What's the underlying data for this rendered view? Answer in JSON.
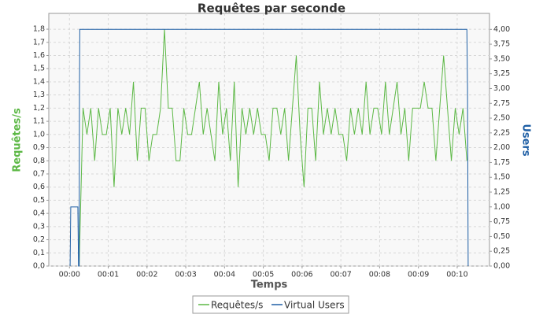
{
  "chart_data": {
    "type": "line",
    "title": "Requêtes par seconde",
    "x_label": "Temps",
    "y_label": "Requêtes/s",
    "y2_label": "Users",
    "xlim": [
      -32,
      650
    ],
    "xticks": [
      {
        "value": 0,
        "label": "00:00"
      },
      {
        "value": 60,
        "label": "00:01"
      },
      {
        "value": 120,
        "label": "00:02"
      },
      {
        "value": 180,
        "label": "00:03"
      },
      {
        "value": 240,
        "label": "00:04"
      },
      {
        "value": 300,
        "label": "00:05"
      },
      {
        "value": 360,
        "label": "00:06"
      },
      {
        "value": 420,
        "label": "00:07"
      },
      {
        "value": 480,
        "label": "00:08"
      },
      {
        "value": 540,
        "label": "00:09"
      },
      {
        "value": 600,
        "label": "00:10"
      }
    ],
    "ylim": [
      0,
      1.92
    ],
    "yticks": [
      {
        "value": 0,
        "label": "0,0"
      },
      {
        "value": 0.1,
        "label": "0,1"
      },
      {
        "value": 0.2,
        "label": "0,2"
      },
      {
        "value": 0.3,
        "label": "0,3"
      },
      {
        "value": 0.4,
        "label": "0,4"
      },
      {
        "value": 0.5,
        "label": "0,5"
      },
      {
        "value": 0.6,
        "label": "0,6"
      },
      {
        "value": 0.7,
        "label": "0,7"
      },
      {
        "value": 0.8,
        "label": "0,8"
      },
      {
        "value": 0.9,
        "label": "0,9"
      },
      {
        "value": 1.0,
        "label": "1,0"
      },
      {
        "value": 1.1,
        "label": "1,1"
      },
      {
        "value": 1.2,
        "label": "1,2"
      },
      {
        "value": 1.3,
        "label": "1,3"
      },
      {
        "value": 1.4,
        "label": "1,4"
      },
      {
        "value": 1.5,
        "label": "1,5"
      },
      {
        "value": 1.6,
        "label": "1,6"
      },
      {
        "value": 1.7,
        "label": "1,7"
      },
      {
        "value": 1.8,
        "label": "1,8"
      }
    ],
    "y2lim": [
      0,
      4.27
    ],
    "y2ticks": [
      {
        "value": 0,
        "label": "0,00"
      },
      {
        "value": 0.25,
        "label": "0,25"
      },
      {
        "value": 0.5,
        "label": "0,50"
      },
      {
        "value": 0.75,
        "label": "0,75"
      },
      {
        "value": 1,
        "label": "1,00"
      },
      {
        "value": 1.25,
        "label": "1,25"
      },
      {
        "value": 1.5,
        "label": "1,50"
      },
      {
        "value": 1.75,
        "label": "1,75"
      },
      {
        "value": 2,
        "label": "2,00"
      },
      {
        "value": 2.25,
        "label": "2,25"
      },
      {
        "value": 2.5,
        "label": "2,50"
      },
      {
        "value": 2.75,
        "label": "2,75"
      },
      {
        "value": 3,
        "label": "3,00"
      },
      {
        "value": 3.25,
        "label": "3,25"
      },
      {
        "value": 3.5,
        "label": "3,50"
      },
      {
        "value": 3.75,
        "label": "3,75"
      },
      {
        "value": 4,
        "label": "4,00"
      }
    ],
    "grid": true,
    "series": [
      {
        "name": "Requêtes/s",
        "color": "#5cb845",
        "x": [
          15,
          21,
          27,
          33,
          39,
          45,
          51,
          57,
          63,
          69,
          75,
          81,
          87,
          93,
          99,
          105,
          111,
          117,
          123,
          129,
          135,
          141,
          147,
          153,
          159,
          165,
          171,
          177,
          183,
          189,
          195,
          201,
          207,
          213,
          219,
          225,
          231,
          237,
          243,
          249,
          255,
          261,
          267,
          273,
          279,
          285,
          291,
          297,
          303,
          309,
          315,
          321,
          327,
          333,
          339,
          345,
          351,
          357,
          363,
          369,
          375,
          381,
          387,
          393,
          399,
          405,
          411,
          417,
          423,
          429,
          435,
          441,
          447,
          453,
          459,
          465,
          471,
          477,
          483,
          489,
          495,
          501,
          507,
          513,
          519,
          525,
          531,
          537,
          543,
          549,
          555,
          561,
          567,
          573,
          579,
          585,
          591,
          597,
          603,
          609,
          615
        ],
        "values": [
          0.0,
          1.2,
          1.0,
          1.2,
          0.8,
          1.2,
          1.0,
          1.0,
          1.2,
          0.6,
          1.2,
          1.0,
          1.2,
          1.0,
          1.4,
          0.8,
          1.2,
          1.2,
          0.8,
          1.0,
          1.0,
          1.2,
          1.8,
          1.2,
          1.2,
          0.8,
          0.8,
          1.2,
          1.0,
          1.0,
          1.2,
          1.4,
          1.0,
          1.2,
          1.0,
          0.8,
          1.4,
          1.0,
          1.2,
          0.8,
          1.4,
          0.6,
          1.2,
          1.0,
          1.2,
          1.0,
          1.2,
          1.0,
          1.0,
          0.8,
          1.2,
          1.2,
          1.0,
          1.2,
          0.8,
          1.2,
          1.6,
          1.0,
          0.6,
          1.2,
          1.2,
          0.8,
          1.4,
          1.0,
          1.2,
          1.0,
          1.2,
          1.0,
          1.0,
          0.8,
          1.2,
          1.0,
          1.2,
          1.0,
          1.4,
          1.0,
          1.2,
          1.2,
          1.0,
          1.4,
          1.0,
          1.2,
          1.4,
          1.0,
          1.2,
          0.8,
          1.2,
          1.2,
          1.2,
          1.4,
          1.2,
          1.2,
          0.8,
          1.2,
          1.6,
          1.2,
          0.8,
          1.2,
          1.0,
          1.2,
          0.8
        ]
      },
      {
        "name": "Virtual Users",
        "color": "#1f5fa5",
        "axis": "y2",
        "x": [
          1,
          2,
          13,
          14,
          15,
          15.5,
          16,
          615,
          616,
          617
        ],
        "values": [
          0,
          1,
          1,
          0,
          0,
          3,
          4,
          4,
          3,
          0
        ]
      }
    ]
  }
}
